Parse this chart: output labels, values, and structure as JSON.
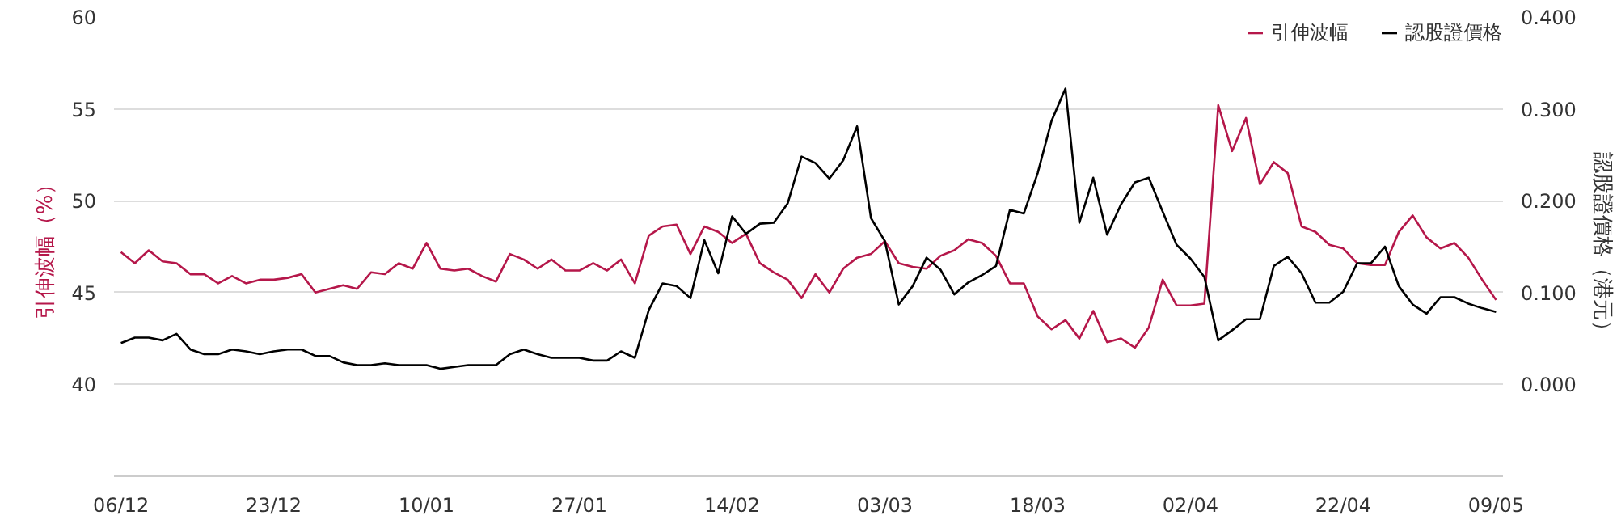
{
  "chart_data": {
    "type": "line",
    "categories": [
      "06/12",
      null,
      null,
      null,
      null,
      null,
      null,
      null,
      null,
      null,
      null,
      "23/12",
      null,
      null,
      null,
      null,
      null,
      null,
      null,
      null,
      null,
      null,
      "10/01",
      null,
      null,
      null,
      null,
      null,
      null,
      null,
      null,
      null,
      null,
      "27/01",
      null,
      null,
      null,
      null,
      null,
      null,
      null,
      null,
      null,
      null,
      "14/02",
      null,
      null,
      null,
      null,
      null,
      null,
      null,
      null,
      null,
      null,
      "03/03",
      null,
      null,
      null,
      null,
      null,
      null,
      null,
      null,
      null,
      null,
      "18/03",
      null,
      null,
      null,
      null,
      null,
      null,
      null,
      null,
      null,
      null,
      "02/04",
      null,
      null,
      null,
      null,
      null,
      null,
      null,
      null,
      null,
      null,
      "22/04",
      null,
      null,
      null,
      null,
      null,
      null,
      null,
      null,
      null,
      null,
      "09/05"
    ],
    "ylabel": "引伸波幅（%）",
    "y2label": "認股證價格（港元）",
    "ylim": [
      35,
      60
    ],
    "yticks": [
      40,
      45,
      50,
      55,
      60
    ],
    "y2lim": [
      -0.1,
      0.4
    ],
    "y2ticks": [
      {
        "value": 0,
        "label": "0.000"
      },
      {
        "value": 0.1,
        "label": "0.100"
      },
      {
        "value": 0.2,
        "label": "0.200"
      },
      {
        "value": 0.3,
        "label": "0.300"
      },
      {
        "value": 0.4,
        "label": "0.400"
      }
    ],
    "grid": "y",
    "legend": "top right",
    "line_style": "solid",
    "series": [
      {
        "name": "引伸波幅",
        "color": "#b5174a",
        "values": [
          47.2,
          46.6,
          47.3,
          46.7,
          46.6,
          46.0,
          46.0,
          45.5,
          45.9,
          45.5,
          45.7,
          45.7,
          45.8,
          46.0,
          45.0,
          45.2,
          45.4,
          45.2,
          46.1,
          46.0,
          46.6,
          46.3,
          47.7,
          46.3,
          46.2,
          46.3,
          45.9,
          45.6,
          47.1,
          46.8,
          46.3,
          46.8,
          46.2,
          46.2,
          46.6,
          46.2,
          46.8,
          45.5,
          48.1,
          48.6,
          48.7,
          47.1,
          48.6,
          48.3,
          47.7,
          48.2,
          46.6,
          46.1,
          45.7,
          44.7,
          46.0,
          45.0,
          46.3,
          46.9,
          47.1,
          47.8,
          46.6,
          46.4,
          46.3,
          47.0,
          47.3,
          47.9,
          47.7,
          47.0,
          45.5,
          45.5,
          43.7,
          43.0,
          43.5,
          42.5,
          44.0,
          42.3,
          42.5,
          42.0,
          43.1,
          45.7,
          44.3,
          44.3,
          44.4,
          55.2,
          52.7,
          54.5,
          50.9,
          52.1,
          51.5,
          48.6,
          48.3,
          47.6,
          47.4,
          46.6,
          46.5,
          46.5,
          48.3,
          49.2,
          48.0,
          47.4,
          47.7,
          46.9,
          45.7,
          44.6
        ]
      },
      {
        "name": "認股證價格",
        "color": "#000000",
        "axis": "y2",
        "values": [
          0.045,
          0.051,
          0.051,
          0.048,
          0.055,
          0.038,
          0.033,
          0.033,
          0.038,
          0.036,
          0.033,
          0.036,
          0.038,
          0.038,
          0.031,
          0.031,
          0.024,
          0.021,
          0.021,
          0.023,
          0.021,
          0.021,
          0.021,
          0.017,
          0.019,
          0.021,
          0.021,
          0.021,
          0.033,
          0.038,
          0.033,
          0.029,
          0.029,
          0.029,
          0.026,
          0.026,
          0.036,
          0.029,
          0.081,
          0.11,
          0.107,
          0.094,
          0.157,
          0.121,
          0.183,
          0.164,
          0.175,
          0.176,
          0.197,
          0.248,
          0.241,
          0.224,
          0.244,
          0.281,
          0.181,
          0.156,
          0.087,
          0.107,
          0.138,
          0.125,
          0.098,
          0.111,
          0.119,
          0.129,
          0.19,
          0.186,
          0.23,
          0.287,
          0.322,
          0.176,
          0.225,
          0.163,
          0.196,
          0.22,
          0.225,
          0.188,
          0.152,
          0.137,
          0.117,
          0.048,
          0.059,
          0.071,
          0.071,
          0.129,
          0.139,
          0.121,
          0.089,
          0.089,
          0.101,
          0.132,
          0.132,
          0.15,
          0.107,
          0.087,
          0.077,
          0.095,
          0.095,
          0.088,
          0.083,
          0.079
        ]
      }
    ]
  }
}
